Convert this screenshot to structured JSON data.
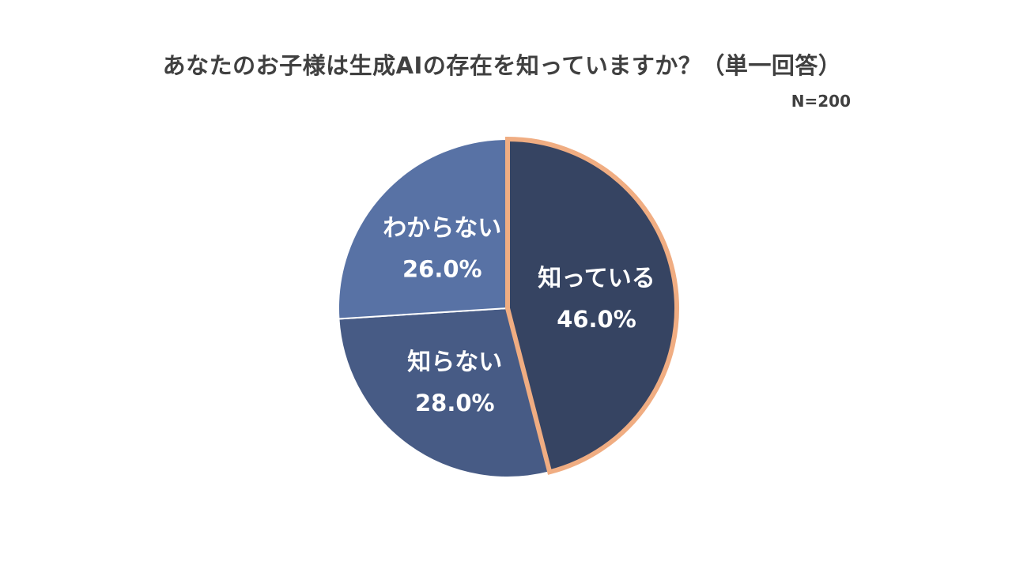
{
  "title": "あなたのお子様は生成AIの存在を知っていますか？（単一回答）",
  "sample_size": "N=200",
  "chart_data": {
    "type": "pie",
    "title": "あなたのお子様は生成AIの存在を知っていますか？（単一回答）",
    "note": "N=200",
    "slices": [
      {
        "label": "知っている",
        "value": 46.0,
        "value_label": "46.0%",
        "color": "#364462",
        "highlight_color": "#f0ad82"
      },
      {
        "label": "知らない",
        "value": 28.0,
        "value_label": "28.0%",
        "color": "#475b85",
        "highlight_color": null
      },
      {
        "label": "わからない",
        "value": 26.0,
        "value_label": "26.0%",
        "color": "#5872a5",
        "highlight_color": null
      }
    ],
    "start": "12 o'clock",
    "direction": "clockwise",
    "highlighted_slice": "知っている",
    "legend": "none (labels inside slices)"
  }
}
